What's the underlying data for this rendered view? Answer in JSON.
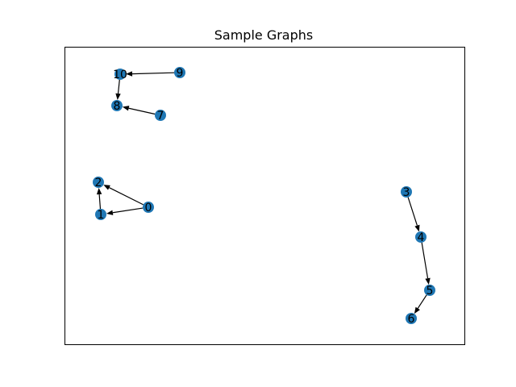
{
  "figure": {
    "title": "Sample Graphs",
    "node_color": "#1f77b4"
  },
  "graph": {
    "directed": true,
    "nodes": [
      {
        "id": "0",
        "label": "0"
      },
      {
        "id": "1",
        "label": "1"
      },
      {
        "id": "2",
        "label": "2"
      },
      {
        "id": "3",
        "label": "3"
      },
      {
        "id": "4",
        "label": "4"
      },
      {
        "id": "5",
        "label": "5"
      },
      {
        "id": "6",
        "label": "6"
      },
      {
        "id": "7",
        "label": "7"
      },
      {
        "id": "8",
        "label": "8"
      },
      {
        "id": "9",
        "label": "9"
      },
      {
        "id": "10",
        "label": "10"
      }
    ],
    "edges": [
      {
        "source": "0",
        "target": "1"
      },
      {
        "source": "0",
        "target": "2"
      },
      {
        "source": "1",
        "target": "2"
      },
      {
        "source": "3",
        "target": "4"
      },
      {
        "source": "4",
        "target": "5"
      },
      {
        "source": "5",
        "target": "6"
      },
      {
        "source": "7",
        "target": "8"
      },
      {
        "source": "9",
        "target": "10"
      },
      {
        "source": "10",
        "target": "8"
      }
    ]
  }
}
